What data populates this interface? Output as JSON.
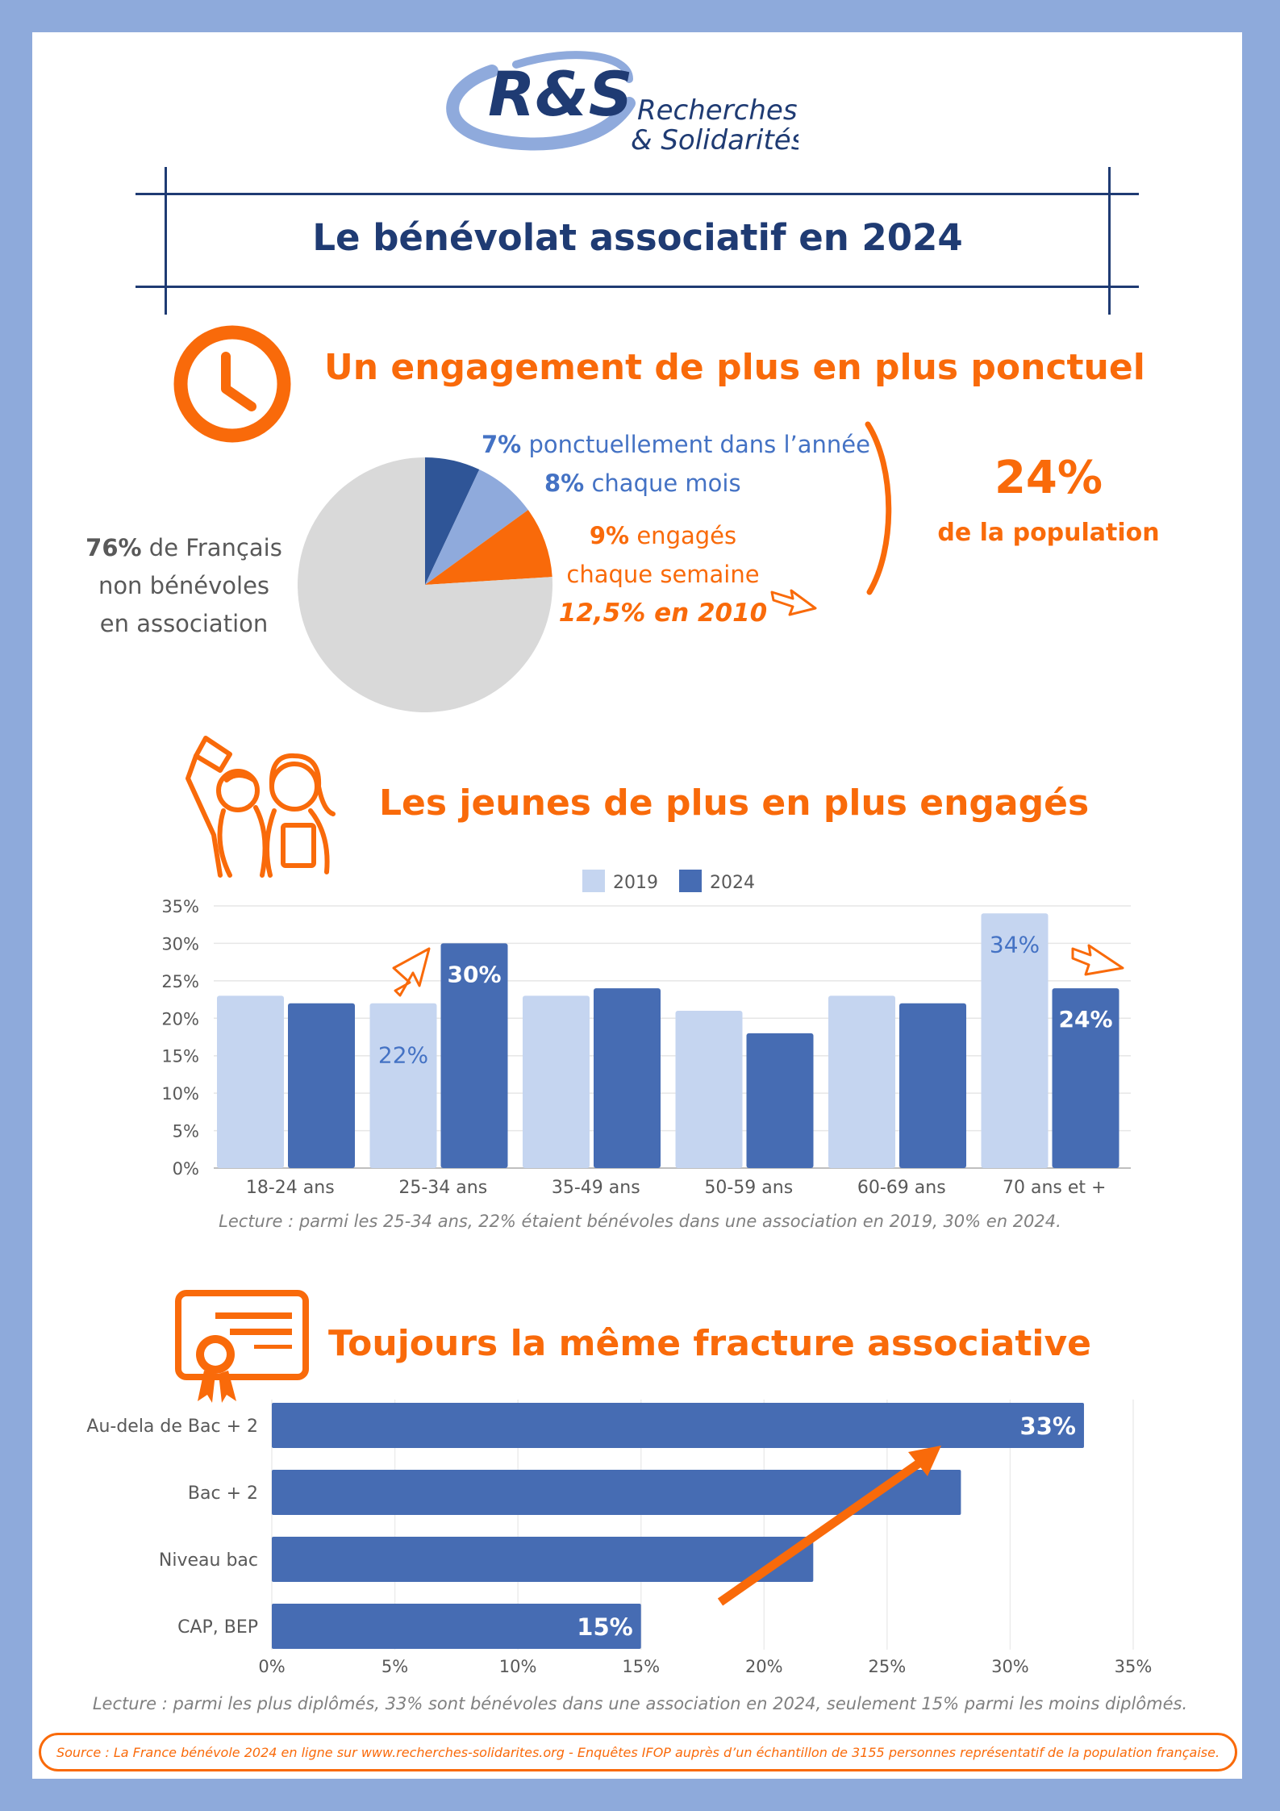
{
  "logo": {
    "initials": "R&S",
    "line1": "Recherches",
    "line2": "& Solidarités"
  },
  "title": "Le bénévolat associatif en 2024",
  "section1": {
    "heading": "Un engagement de plus en plus ponctuel",
    "non_volunteers": {
      "pct": "76%",
      "line1": " de Français",
      "line2": "non bénévoles",
      "line3": "en association"
    },
    "occasional": {
      "pct": "7%",
      "text": " ponctuellement dans l’année"
    },
    "monthly": {
      "pct": "8%",
      "text": " chaque mois"
    },
    "weekly": {
      "pct": "9%",
      "text": " engagés",
      "line2": "chaque semaine",
      "prev": "12,5% en 2010"
    },
    "total": {
      "pct": "24%",
      "text": "de la population"
    },
    "colors": {
      "occasional": "#2f5597",
      "monthly": "#8faadc",
      "weekly": "#f96a0a",
      "non": "#d9d9d9"
    }
  },
  "section2": {
    "heading": "Les jeunes de plus en plus engagés",
    "lecture": "Lecture : parmi les 25-34 ans, 22% étaient bénévoles dans une association en 2019, 30% en 2024."
  },
  "section3": {
    "heading": "Toujours la même fracture associative",
    "lecture": "Lecture : parmi les plus diplômés, 33% sont bénévoles dans une association en 2024, seulement 15% parmi les moins diplômés."
  },
  "source": "Source : La France bénévole 2024 en ligne sur www.recherches-solidarites.org - Enquêtes IFOP auprès d’un échantillon de 3155 personnes représentatif de la population française.",
  "chart_data": [
    {
      "type": "pie",
      "categories": [
        "Ponctuellement dans l’année",
        "Chaque mois",
        "Chaque semaine",
        "Non bénévoles"
      ],
      "values": [
        7,
        8,
        9,
        76
      ]
    },
    {
      "type": "bar",
      "categories": [
        "18-24 ans",
        "25-34 ans",
        "35-49 ans",
        "50-59 ans",
        "60-69 ans",
        "70 ans et +"
      ],
      "series": [
        {
          "name": "2019",
          "values": [
            23,
            22,
            23,
            21,
            23,
            34
          ],
          "color": "#c5d5f0"
        },
        {
          "name": "2024",
          "values": [
            22,
            30,
            24,
            18,
            22,
            24
          ],
          "color": "#466cb3"
        }
      ],
      "data_labels": [
        {
          "series": "2019",
          "category": "25-34 ans",
          "text": "22%"
        },
        {
          "series": "2024",
          "category": "25-34 ans",
          "text": "30%"
        },
        {
          "series": "2019",
          "category": "70 ans et +",
          "text": "34%"
        },
        {
          "series": "2024",
          "category": "70 ans et +",
          "text": "24%"
        }
      ],
      "yticks": [
        "0%",
        "5%",
        "10%",
        "15%",
        "20%",
        "25%",
        "30%",
        "35%"
      ],
      "ylim": [
        0,
        35
      ],
      "legend": "top-center"
    },
    {
      "type": "bar",
      "orientation": "horizontal",
      "categories": [
        "Au-dela de Bac + 2",
        "Bac + 2",
        "Niveau bac",
        "CAP, BEP"
      ],
      "values": [
        33,
        28,
        22,
        15
      ],
      "data_labels": {
        "Au-dela de Bac + 2": "33%",
        "CAP, BEP": "15%"
      },
      "xticks": [
        "0%",
        "5%",
        "10%",
        "15%",
        "20%",
        "25%",
        "30%",
        "35%"
      ],
      "xlim": [
        0,
        35
      ],
      "color": "#466cb3"
    }
  ]
}
